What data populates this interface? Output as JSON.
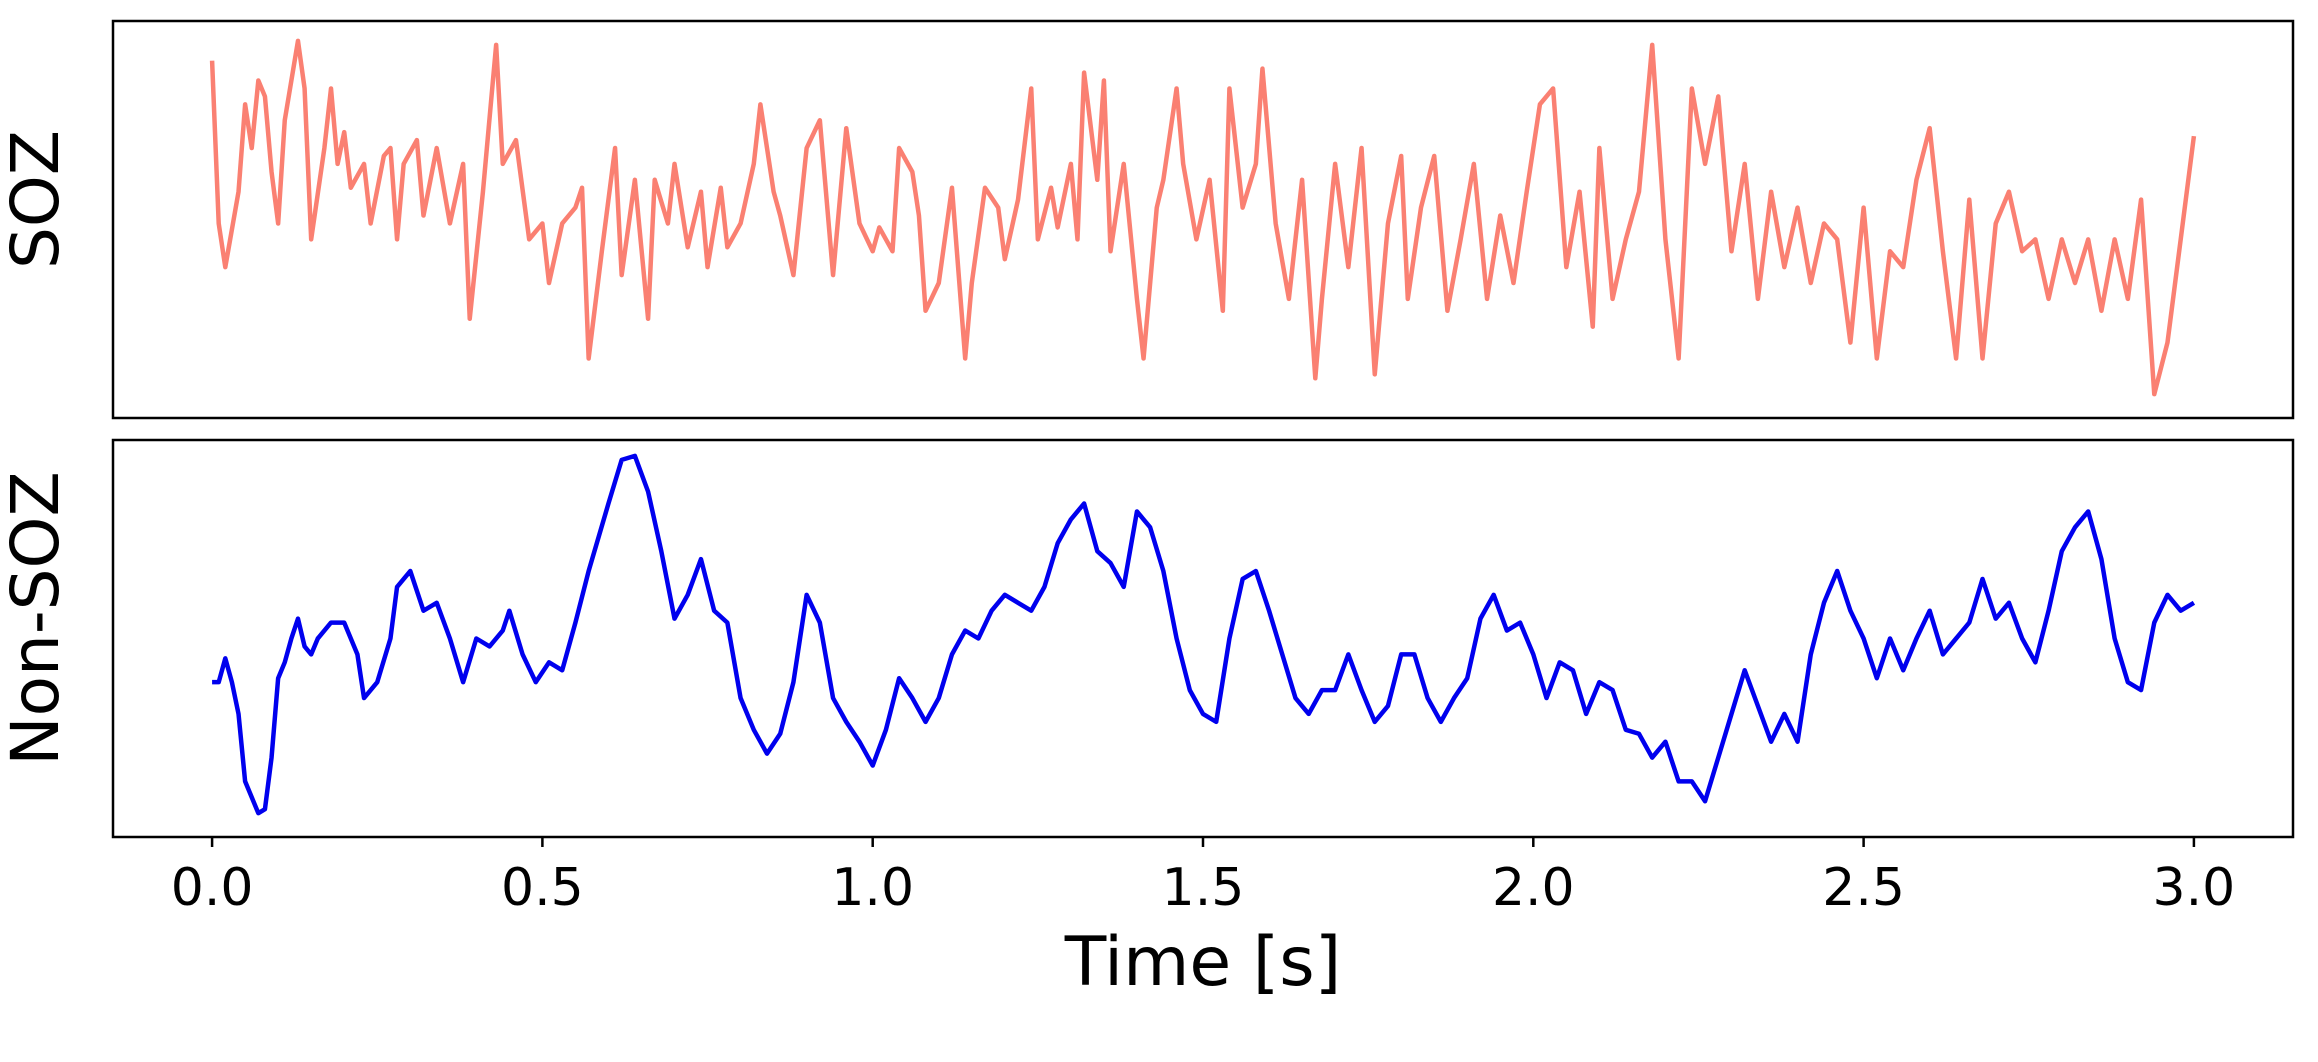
{
  "chart_data": [
    {
      "type": "line",
      "ylabel": "SOZ",
      "color": "#fa8072",
      "xlim": [
        -0.15,
        3.15
      ],
      "ylim": [
        0,
        10
      ],
      "x": [
        0,
        0.01,
        0.02,
        0.04,
        0.05,
        0.06,
        0.07,
        0.08,
        0.09,
        0.1,
        0.11,
        0.13,
        0.14,
        0.15,
        0.17,
        0.18,
        0.19,
        0.2,
        0.21,
        0.23,
        0.24,
        0.26,
        0.27,
        0.28,
        0.29,
        0.31,
        0.32,
        0.34,
        0.36,
        0.38,
        0.39,
        0.41,
        0.43,
        0.44,
        0.46,
        0.48,
        0.5,
        0.51,
        0.53,
        0.55,
        0.56,
        0.57,
        0.59,
        0.61,
        0.62,
        0.64,
        0.66,
        0.67,
        0.69,
        0.7,
        0.72,
        0.74,
        0.75,
        0.77,
        0.78,
        0.8,
        0.82,
        0.83,
        0.85,
        0.86,
        0.88,
        0.9,
        0.92,
        0.94,
        0.96,
        0.98,
        1.0,
        1.01,
        1.03,
        1.04,
        1.06,
        1.07,
        1.08,
        1.1,
        1.12,
        1.14,
        1.15,
        1.17,
        1.19,
        1.2,
        1.22,
        1.24,
        1.25,
        1.27,
        1.28,
        1.3,
        1.31,
        1.32,
        1.34,
        1.35,
        1.36,
        1.38,
        1.4,
        1.41,
        1.43,
        1.44,
        1.46,
        1.47,
        1.49,
        1.51,
        1.53,
        1.54,
        1.56,
        1.58,
        1.59,
        1.61,
        1.63,
        1.65,
        1.67,
        1.68,
        1.7,
        1.72,
        1.74,
        1.76,
        1.78,
        1.8,
        1.81,
        1.83,
        1.85,
        1.87,
        1.89,
        1.91,
        1.93,
        1.95,
        1.97,
        1.99,
        2.01,
        2.03,
        2.05,
        2.07,
        2.09,
        2.1,
        2.12,
        2.14,
        2.16,
        2.18,
        2.2,
        2.22,
        2.24,
        2.26,
        2.28,
        2.3,
        2.32,
        2.34,
        2.36,
        2.38,
        2.4,
        2.42,
        2.44,
        2.46,
        2.48,
        2.5,
        2.52,
        2.54,
        2.56,
        2.58,
        2.6,
        2.62,
        2.64,
        2.66,
        2.68,
        2.7,
        2.72,
        2.74,
        2.76,
        2.78,
        2.8,
        2.82,
        2.84,
        2.86,
        2.88,
        2.9,
        2.92,
        2.94,
        2.96,
        2.98,
        3.0
      ],
      "values": [
        9.0,
        4.9,
        3.8,
        5.7,
        7.9,
        6.8,
        8.5,
        8.1,
        6.2,
        4.9,
        7.5,
        9.5,
        8.3,
        4.5,
        6.8,
        8.3,
        6.4,
        7.2,
        5.8,
        6.4,
        4.9,
        6.6,
        6.8,
        4.5,
        6.4,
        7.0,
        5.1,
        6.8,
        4.9,
        6.4,
        2.5,
        5.7,
        9.4,
        6.4,
        7.0,
        4.5,
        4.9,
        3.4,
        4.9,
        5.3,
        5.8,
        1.5,
        4.2,
        6.8,
        3.6,
        6.0,
        2.5,
        6.0,
        4.9,
        6.4,
        4.3,
        5.7,
        3.8,
        5.8,
        4.3,
        4.9,
        6.4,
        7.9,
        5.7,
        5.1,
        3.6,
        6.8,
        7.5,
        3.6,
        7.3,
        4.9,
        4.2,
        4.8,
        4.2,
        6.8,
        6.2,
        5.1,
        2.7,
        3.4,
        5.8,
        1.5,
        3.4,
        5.8,
        5.3,
        4.0,
        5.5,
        8.3,
        4.5,
        5.8,
        4.8,
        6.4,
        4.5,
        8.7,
        6.0,
        8.5,
        4.2,
        6.4,
        3.0,
        1.5,
        5.3,
        6.0,
        8.3,
        6.4,
        4.5,
        6.0,
        2.7,
        8.3,
        5.3,
        6.4,
        8.8,
        4.9,
        3.0,
        6.0,
        1.0,
        3.0,
        6.4,
        3.8,
        6.8,
        1.1,
        4.9,
        6.6,
        3.0,
        5.3,
        6.6,
        2.7,
        4.5,
        6.4,
        3.0,
        5.1,
        3.4,
        5.7,
        7.9,
        8.3,
        3.8,
        5.7,
        2.3,
        6.8,
        3.0,
        4.5,
        5.7,
        9.4,
        4.5,
        1.5,
        8.3,
        6.4,
        8.1,
        4.2,
        6.4,
        3.0,
        5.7,
        3.8,
        5.3,
        3.4,
        4.9,
        4.5,
        1.9,
        5.3,
        1.5,
        4.2,
        3.8,
        6.0,
        7.3,
        4.2,
        1.5,
        5.5,
        1.5,
        4.9,
        5.7,
        4.2,
        4.5,
        3.0,
        4.5,
        3.4,
        4.5,
        2.7,
        4.5,
        3.0,
        5.5,
        0.6,
        1.9,
        4.5,
        7.1
      ]
    },
    {
      "type": "line",
      "ylabel": "Non-SOZ",
      "xlabel": "Time [s]",
      "color": "#0000ee",
      "xlim": [
        -0.15,
        3.15
      ],
      "ylim": [
        0,
        10
      ],
      "xticks": [
        {
          "value": 0,
          "label": "0.0"
        },
        {
          "value": 0.5,
          "label": "0.5"
        },
        {
          "value": 1,
          "label": "1.0"
        },
        {
          "value": 1.5,
          "label": "1.5"
        },
        {
          "value": 2,
          "label": "2.0"
        },
        {
          "value": 2.5,
          "label": "2.5"
        },
        {
          "value": 3,
          "label": "3.0"
        }
      ],
      "x": [
        0,
        0.01,
        0.02,
        0.03,
        0.04,
        0.05,
        0.06,
        0.07,
        0.08,
        0.09,
        0.1,
        0.11,
        0.12,
        0.13,
        0.14,
        0.15,
        0.16,
        0.18,
        0.2,
        0.22,
        0.23,
        0.25,
        0.27,
        0.28,
        0.3,
        0.32,
        0.34,
        0.36,
        0.38,
        0.4,
        0.42,
        0.44,
        0.45,
        0.47,
        0.49,
        0.51,
        0.53,
        0.55,
        0.57,
        0.6,
        0.62,
        0.64,
        0.66,
        0.68,
        0.7,
        0.72,
        0.74,
        0.76,
        0.78,
        0.8,
        0.82,
        0.84,
        0.86,
        0.88,
        0.9,
        0.92,
        0.94,
        0.96,
        0.98,
        1.0,
        1.02,
        1.04,
        1.06,
        1.08,
        1.1,
        1.12,
        1.14,
        1.16,
        1.18,
        1.2,
        1.22,
        1.24,
        1.26,
        1.28,
        1.3,
        1.32,
        1.34,
        1.36,
        1.38,
        1.4,
        1.42,
        1.44,
        1.46,
        1.48,
        1.5,
        1.52,
        1.54,
        1.56,
        1.58,
        1.6,
        1.62,
        1.64,
        1.66,
        1.68,
        1.7,
        1.72,
        1.74,
        1.76,
        1.78,
        1.8,
        1.82,
        1.84,
        1.86,
        1.88,
        1.9,
        1.92,
        1.94,
        1.96,
        1.98,
        2.0,
        2.02,
        2.04,
        2.06,
        2.08,
        2.1,
        2.12,
        2.14,
        2.16,
        2.18,
        2.2,
        2.22,
        2.24,
        2.26,
        2.28,
        2.3,
        2.32,
        2.34,
        2.36,
        2.38,
        2.4,
        2.42,
        2.44,
        2.46,
        2.48,
        2.5,
        2.52,
        2.54,
        2.56,
        2.58,
        2.6,
        2.62,
        2.64,
        2.66,
        2.68,
        2.7,
        2.72,
        2.74,
        2.76,
        2.78,
        2.8,
        2.82,
        2.84,
        2.86,
        2.88,
        2.9,
        2.92,
        2.94,
        2.96,
        2.98,
        3.0
      ],
      "values": [
        3.9,
        3.9,
        4.5,
        3.9,
        3.1,
        1.4,
        1.0,
        0.6,
        0.7,
        2.0,
        4.0,
        4.4,
        5.0,
        5.5,
        4.8,
        4.6,
        5.0,
        5.4,
        5.4,
        4.6,
        3.5,
        3.9,
        5.0,
        6.3,
        6.7,
        5.7,
        5.9,
        5.0,
        3.9,
        5.0,
        4.8,
        5.2,
        5.7,
        4.6,
        3.9,
        4.4,
        4.2,
        5.4,
        6.7,
        8.4,
        9.5,
        9.6,
        8.7,
        7.2,
        5.5,
        6.1,
        7.0,
        5.7,
        5.4,
        3.5,
        2.7,
        2.1,
        2.6,
        3.9,
        6.1,
        5.4,
        3.5,
        2.9,
        2.4,
        1.8,
        2.7,
        4.0,
        3.5,
        2.9,
        3.5,
        4.6,
        5.2,
        5.0,
        5.7,
        6.1,
        5.9,
        5.7,
        6.3,
        7.4,
        8.0,
        8.4,
        7.2,
        6.9,
        6.3,
        8.2,
        7.8,
        6.7,
        5.0,
        3.7,
        3.1,
        2.9,
        5.0,
        6.5,
        6.7,
        5.7,
        4.6,
        3.5,
        3.1,
        3.7,
        3.7,
        4.6,
        3.7,
        2.9,
        3.3,
        4.6,
        4.6,
        3.5,
        2.9,
        3.5,
        4.0,
        5.5,
        6.1,
        5.2,
        5.4,
        4.6,
        3.5,
        4.4,
        4.2,
        3.1,
        3.9,
        3.7,
        2.7,
        2.6,
        2.0,
        2.4,
        1.4,
        1.4,
        0.9,
        2.0,
        3.1,
        4.2,
        3.3,
        2.4,
        3.1,
        2.4,
        4.6,
        5.9,
        6.7,
        5.7,
        5.0,
        4.0,
        5.0,
        4.2,
        5.0,
        5.7,
        4.6,
        5.0,
        5.4,
        6.5,
        5.5,
        5.9,
        5.0,
        4.4,
        5.7,
        7.2,
        7.8,
        8.2,
        7.0,
        5.0,
        3.9,
        3.7,
        5.4,
        6.1,
        5.7,
        5.9
      ]
    }
  ]
}
